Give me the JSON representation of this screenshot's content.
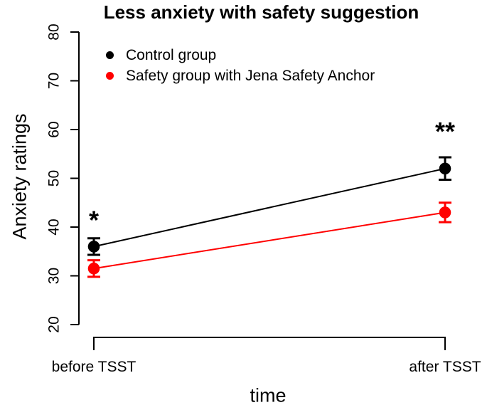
{
  "chart_data": {
    "type": "line",
    "title": "Less anxiety with safety suggestion",
    "xlabel": "time",
    "ylabel": "Anxiety ratings",
    "x_categories": [
      "before TSST",
      "after TSST"
    ],
    "ylim": [
      20,
      80
    ],
    "yticks": [
      20,
      30,
      40,
      50,
      60,
      70,
      80
    ],
    "grid": false,
    "legend_position": "top-left",
    "series": [
      {
        "name": "Control group",
        "color": "#000000",
        "values": [
          36,
          52
        ],
        "errors": [
          1.7,
          2.3
        ]
      },
      {
        "name": "Safety group with Jena Safety Anchor",
        "color": "#ff0000",
        "values": [
          31.5,
          43
        ],
        "errors": [
          1.7,
          2.0
        ]
      }
    ],
    "annotations": [
      {
        "text": "*",
        "x_index": 0,
        "y": 39.6
      },
      {
        "text": "**",
        "x_index": 1,
        "y": 57.8
      }
    ]
  }
}
